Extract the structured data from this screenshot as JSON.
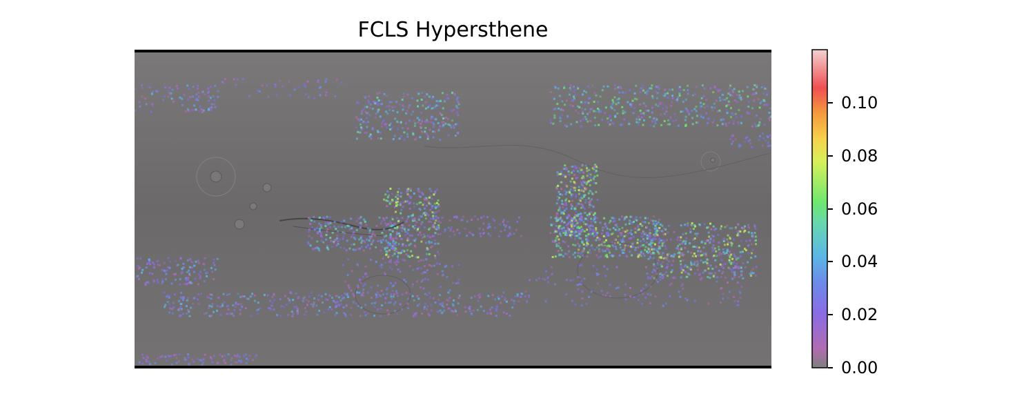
{
  "title": "FCLS Hypersthene",
  "colorbar": {
    "min": 0.0,
    "max": 0.12,
    "ticks": [
      "0.00",
      "0.02",
      "0.04",
      "0.06",
      "0.08",
      "0.10"
    ],
    "tick_values": [
      0.0,
      0.02,
      0.04,
      0.06,
      0.08,
      0.1
    ]
  },
  "map": {
    "base": "grey shaded-relief basemap",
    "colors": {
      "base": "#6d6b6c",
      "bands": [
        "#7f7f7f",
        "#cc66cc",
        "#7b6ee8",
        "#5a9be8",
        "#52c8e8",
        "#6ee86e",
        "#f0f04a",
        "#f59a3c",
        "#f04a4a",
        "#f0c8c8"
      ]
    }
  }
}
